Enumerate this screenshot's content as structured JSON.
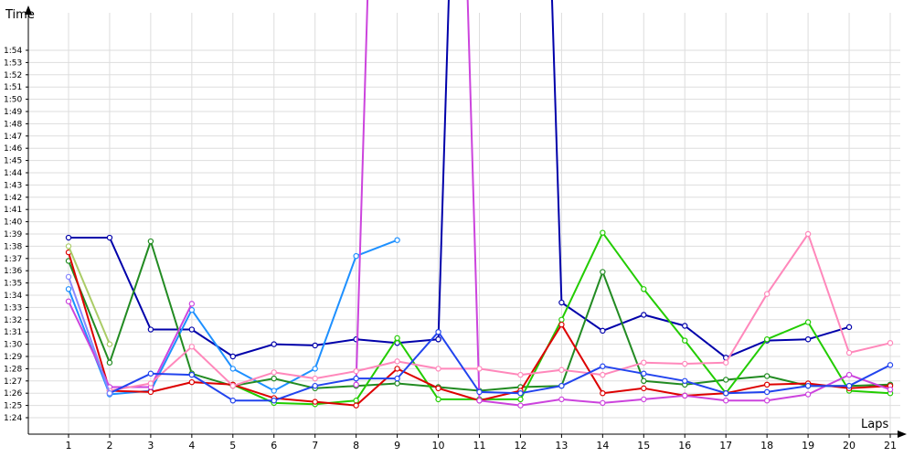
{
  "chart_data": {
    "type": "line",
    "xlabel": "Laps",
    "ylabel": "Time",
    "grid": true,
    "x": [
      1,
      2,
      3,
      4,
      5,
      6,
      7,
      8,
      9,
      10,
      11,
      12,
      13,
      14,
      15,
      16,
      17,
      18,
      19,
      20,
      21
    ],
    "xlim": [
      0,
      21
    ],
    "ylim_seconds": [
      83,
      117
    ],
    "yticks": [
      "1:24",
      "1:25",
      "1:26",
      "1:27",
      "1:28",
      "1:29",
      "1:30",
      "1:31",
      "1:32",
      "1:33",
      "1:34",
      "1:35",
      "1:36",
      "1:37",
      "1:38",
      "1:39",
      "1:40",
      "1:41",
      "1:42",
      "1:43",
      "1:44",
      "1:45",
      "1:46",
      "1:47",
      "1:48",
      "1:49",
      "1:50",
      "1:51",
      "1:52",
      "1:53",
      "1:54"
    ],
    "series": [
      {
        "color": "#0000aa",
        "values": [
          98.7,
          98.7,
          91.2,
          91.2,
          89.0,
          90.0,
          89.9,
          90.4,
          90.1,
          90.4,
          null,
          null,
          null,
          null,
          null,
          null,
          null,
          null,
          null,
          null,
          null
        ]
      },
      {
        "color": "#0000aa",
        "values": [
          null,
          null,
          null,
          null,
          null,
          null,
          null,
          null,
          null,
          90.4,
          200.0,
          200.0,
          93.4,
          91.1,
          92.4,
          91.5,
          88.9,
          90.3,
          90.4,
          91.4,
          null
        ]
      },
      {
        "color": "#1e90ff",
        "values": [
          94.5,
          85.9,
          86.2,
          92.8,
          88.0,
          86.2,
          88.0,
          97.2,
          98.5,
          null,
          null,
          null,
          null,
          null,
          null,
          null,
          null,
          null,
          null,
          null,
          null
        ]
      },
      {
        "color": "#228b22",
        "values": [
          96.8,
          88.5,
          98.4,
          87.6,
          null,
          null,
          null,
          null,
          null,
          null,
          null,
          null,
          null,
          null,
          null,
          null,
          null,
          null,
          null,
          null,
          null
        ]
      },
      {
        "color": "#228b22",
        "values": [
          null,
          null,
          null,
          87.6,
          86.6,
          87.2,
          86.4,
          86.6,
          86.8,
          86.5,
          86.2,
          86.5,
          86.6,
          95.9,
          87.0,
          86.7,
          87.1,
          87.4,
          86.6,
          86.6,
          86.7
        ]
      },
      {
        "color": "#22cc00",
        "values": [
          null,
          null,
          null,
          null,
          86.7,
          85.2,
          85.1,
          85.4,
          90.5,
          85.5,
          85.5,
          85.5,
          92.0,
          99.1,
          94.5,
          90.3,
          86.0,
          90.4,
          91.8,
          86.2,
          86.0
        ]
      },
      {
        "color": "#dd0000",
        "values": [
          97.5,
          86.2,
          86.1,
          86.9,
          86.7,
          85.6,
          85.3,
          85.0,
          88.0,
          86.4,
          85.4,
          86.2,
          91.6,
          86.0,
          86.4,
          85.8,
          86.0,
          86.7,
          86.8,
          86.4,
          86.6
        ]
      },
      {
        "color": "#cc44dd",
        "values": [
          93.5,
          86.5,
          86.5,
          93.3,
          null,
          null,
          null,
          null,
          null,
          null,
          null,
          null,
          null,
          null,
          null,
          null,
          null,
          null,
          null,
          null,
          null
        ]
      },
      {
        "color": "#cc44dd",
        "values": [
          null,
          null,
          null,
          null,
          null,
          null,
          null,
          null,
          null,
          null,
          85.4,
          85.0,
          85.5,
          85.2,
          85.5,
          85.8,
          85.4,
          85.4,
          85.9,
          87.5,
          86.3
        ]
      },
      {
        "color": "#cc44dd",
        "values": [
          null,
          null,
          null,
          null,
          null,
          null,
          null,
          86.7,
          200.0,
          200.0,
          85.4,
          null,
          null,
          null,
          null,
          null,
          null,
          null,
          null,
          null,
          null
        ]
      },
      {
        "color": "#ff88bb",
        "values": [
          null,
          86.2,
          86.8,
          89.8,
          86.6,
          87.7,
          87.2,
          87.8,
          88.6,
          88.0,
          88.0,
          87.5,
          87.9,
          87.5,
          88.5,
          88.4,
          88.5,
          94.1,
          99.0,
          89.3,
          90.1
        ]
      },
      {
        "color": "#aacc66",
        "values": [
          98.0,
          90.0,
          null,
          null,
          null,
          null,
          null,
          null,
          null,
          null,
          null,
          null,
          null,
          null,
          null,
          null,
          null,
          null,
          null,
          null,
          null
        ]
      },
      {
        "color": "#2244ee",
        "values": [
          null,
          86.0,
          87.6,
          87.5,
          85.4,
          85.4,
          86.6,
          87.2,
          87.2,
          91.0,
          86.1,
          86.0,
          86.6,
          88.2,
          87.6,
          87.0,
          86.0,
          86.1,
          86.6,
          86.6,
          88.3
        ]
      },
      {
        "color": "#8888ff",
        "values": [
          95.5,
          86.0,
          null,
          null,
          null,
          null,
          null,
          null,
          null,
          null,
          null,
          null,
          null,
          null,
          null,
          null,
          null,
          null,
          null,
          null,
          null
        ]
      }
    ]
  }
}
